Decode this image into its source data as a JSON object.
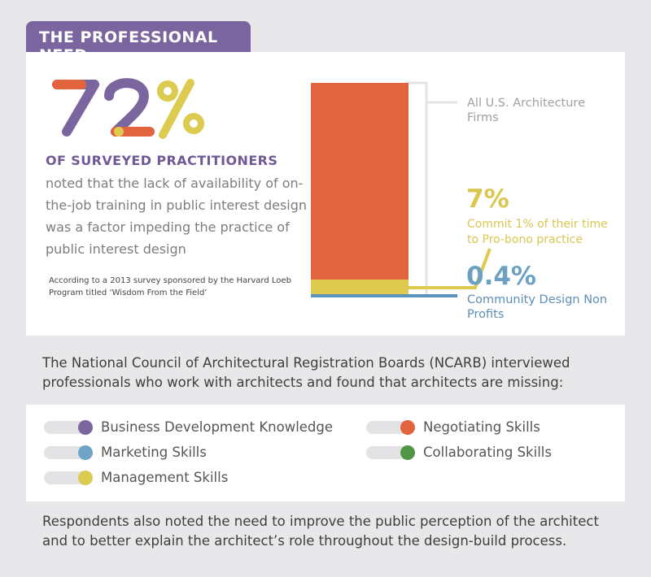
{
  "header": {
    "tab_label": "THE PROFESSIONAL NEED"
  },
  "stat": {
    "big_number": "72%",
    "headline": "OF SURVEYED PRACTITIONERS",
    "description": "noted that the lack of availability of on-the-job training in public interest design was a factor impeding the practice of public interest design",
    "source": "According to a 2013 survey sponsored by the Harvard Loeb Program titled ‘Wisdom From the Field’"
  },
  "chart_data": {
    "type": "bar",
    "series": [
      {
        "name": "All U.S. Architecture Firms",
        "value": 100,
        "color": "#e2643f"
      },
      {
        "name": "Commit 1% of their time to Pro-bono practice",
        "value": 7,
        "value_label": "7%",
        "color": "#ddcb50"
      },
      {
        "name": "Community Design Non Profits",
        "value": 0.4,
        "value_label": "0.4%",
        "color": "#5b93bd"
      }
    ]
  },
  "chart_labels": {
    "all_firms": "All U.S. Architecture Firms",
    "pct_7": "7%",
    "label_7": "Commit 1% of their time to Pro-bono practice",
    "pct_04": "0.4%",
    "label_04": "Community Design Non Profits"
  },
  "intro_text": "The National Council of Architectural Registration Boards (NCARB)  interviewed professionals who work with architects and found that architects are missing:",
  "skills": [
    {
      "label": "Business Development Knowledge",
      "color": "#7b659f"
    },
    {
      "label": "Marketing Skills",
      "color": "#6fa3c7"
    },
    {
      "label": "Management Skills",
      "color": "#ddcb50"
    },
    {
      "label": "Negotiating Skills",
      "color": "#e2643f"
    },
    {
      "label": "Collaborating Skills",
      "color": "#4f9747"
    }
  ],
  "outro_text": "Respondents also noted the need to improve the public perception of the architect and to better explain the architect’s role throughout the design-build process."
}
